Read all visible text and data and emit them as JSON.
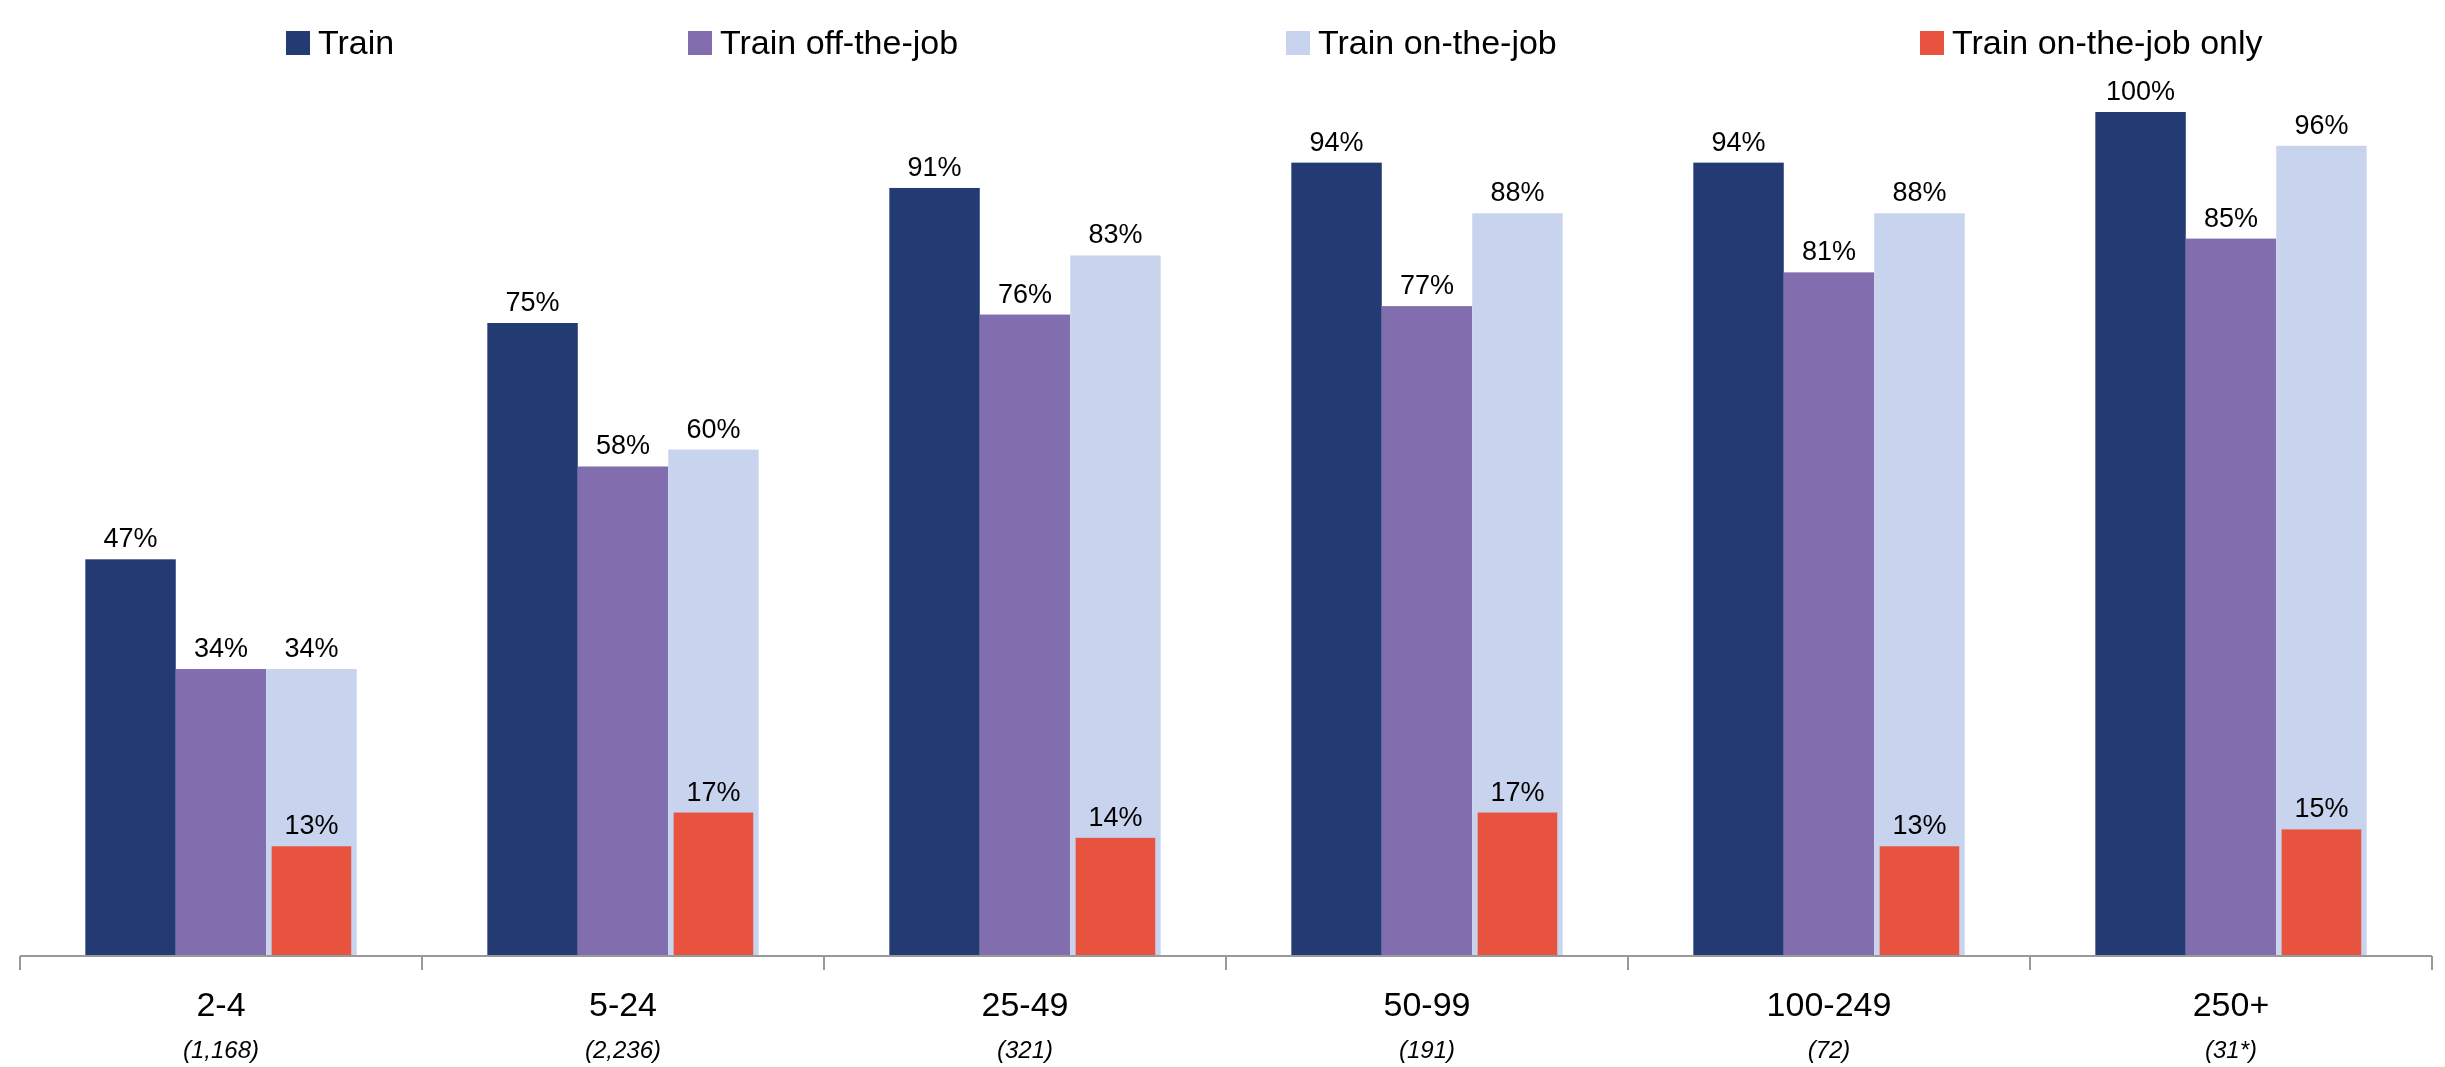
{
  "chart_data": {
    "type": "bar",
    "categories": [
      "2-4\n(1,168)",
      "5-24\n(2,236)",
      "25-49\n(321)",
      "50-99\n(191)",
      "100-249\n(72)",
      "250+\n(31*)"
    ],
    "series": [
      {
        "name": "Train",
        "color": "#233a72",
        "values": [
          47,
          75,
          91,
          94,
          94,
          100
        ],
        "value_labels": [
          "47%",
          "75%",
          "91%",
          "94%",
          "94%",
          "100%"
        ]
      },
      {
        "name": "Train off-the-job",
        "color": "#826daf",
        "values": [
          34,
          58,
          76,
          77,
          81,
          85
        ],
        "value_labels": [
          "34%",
          "58%",
          "76%",
          "77%",
          "81%",
          "85%"
        ]
      },
      {
        "name": "Train on-the-job",
        "color": "#c8d3ee",
        "values": [
          34,
          60,
          83,
          88,
          88,
          96
        ],
        "value_labels": [
          "34%",
          "60%",
          "83%",
          "88%",
          "88%",
          "96%"
        ]
      },
      {
        "name": "Train on-the-job only",
        "color": "#e85340",
        "values": [
          13,
          17,
          14,
          17,
          13,
          15
        ],
        "value_labels": [
          "13%",
          "17%",
          "14%",
          "17%",
          "13%",
          "15%"
        ]
      }
    ],
    "legend": "top"
  }
}
